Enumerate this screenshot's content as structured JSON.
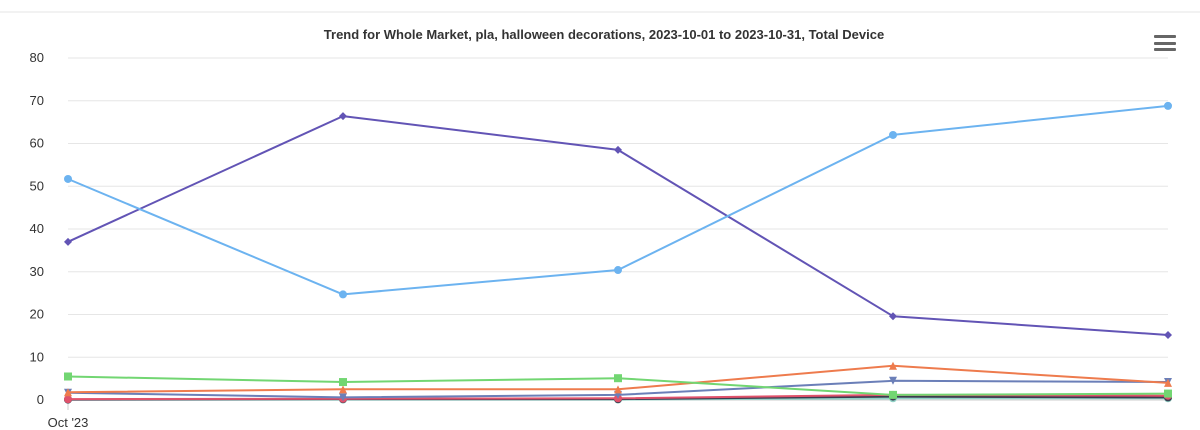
{
  "chart_data": {
    "type": "line",
    "title": "Trend for Whole Market, pla, halloween decorations, 2023-10-01 to 2023-10-31, Total Device",
    "xlabel": "",
    "ylabel": "",
    "ylim": [
      0,
      80
    ],
    "yticks": [
      "0",
      "10",
      "20",
      "30",
      "40",
      "50",
      "60",
      "70",
      "80"
    ],
    "x_tick_labels": [
      "Oct '23"
    ],
    "grid": true,
    "legend": "none",
    "x": [
      1,
      2,
      3,
      4,
      5
    ],
    "series": [
      {
        "color": "#6cb3f0",
        "marker": "circle",
        "values": [
          51.7,
          24.7,
          30.4,
          62.0,
          68.8
        ]
      },
      {
        "color": "#6254b5",
        "marker": "diamond",
        "values": [
          37.0,
          66.4,
          58.5,
          19.6,
          15.2
        ]
      },
      {
        "color": "#72d672",
        "marker": "square",
        "values": [
          5.5,
          4.2,
          5.1,
          1.2,
          1.5
        ]
      },
      {
        "color": "#ee7b4d",
        "marker": "triangle",
        "values": [
          1.8,
          2.5,
          2.5,
          8.0,
          4.0
        ]
      },
      {
        "color": "#6b7fb8",
        "marker": "triangle-down",
        "values": [
          1.7,
          0.6,
          1.2,
          4.5,
          4.2
        ]
      },
      {
        "color": "#e0526b",
        "marker": "circle",
        "values": [
          0.2,
          0.3,
          0.4,
          1.2,
          1.0
        ]
      },
      {
        "color": "#3b3b4f",
        "marker": "circle",
        "values": [
          0.1,
          0.2,
          0.2,
          0.8,
          0.6
        ]
      },
      {
        "color": "#8fd1c5",
        "marker": "circle",
        "values": [
          0.1,
          0.1,
          0.1,
          0.4,
          0.4
        ]
      }
    ]
  }
}
